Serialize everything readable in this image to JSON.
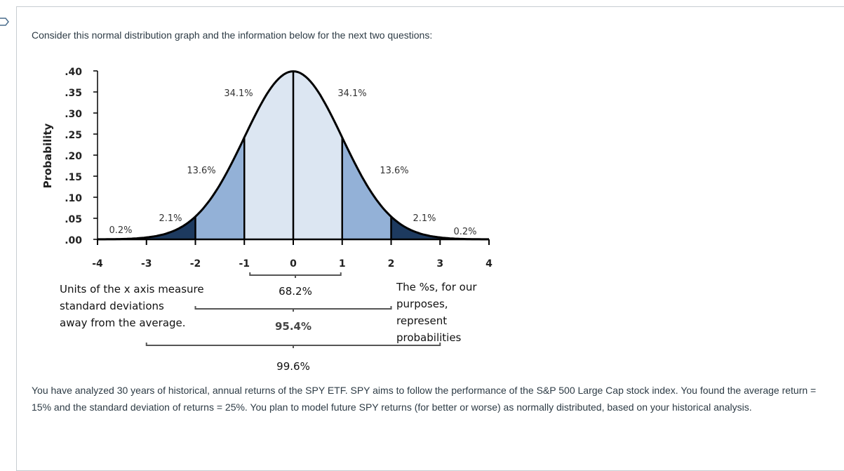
{
  "intro": "Consider this normal distribution graph and the information below for the next two questions:",
  "paragraph": "You have analyzed 30 years of historical, annual returns of the SPY ETF.  SPY aims to follow the performance of the S&P 500 Large Cap stock index. You found the average return = 15% and the standard deviation of returns = 25%. You plan to model future SPY returns (for better or worse) as normally distributed, based on your historical analysis.",
  "chart_data": {
    "type": "area",
    "ylabel": "Probability",
    "xlim": [
      -4,
      4
    ],
    "ylim": [
      0,
      0.4
    ],
    "x_ticks": [
      "-4",
      "-3",
      "-2",
      "-1",
      "0",
      "1",
      "2",
      "3",
      "4"
    ],
    "y_ticks": [
      ".40",
      ".35",
      ".30",
      ".25",
      ".20",
      ".15",
      ".10",
      ".05",
      ".00"
    ],
    "regions": [
      {
        "from": -4,
        "to": -3,
        "label": "0.2%",
        "color": "#1d3a5f"
      },
      {
        "from": -3,
        "to": -2,
        "label": "2.1%",
        "color": "#1d3a5f"
      },
      {
        "from": -2,
        "to": -1,
        "label": "13.6%",
        "color": "#93b1d7"
      },
      {
        "from": -1,
        "to": 0,
        "label": "34.1%",
        "color": "#dce6f2"
      },
      {
        "from": 0,
        "to": 1,
        "label": "34.1%",
        "color": "#dce6f2"
      },
      {
        "from": 1,
        "to": 2,
        "label": "13.6%",
        "color": "#93b1d7"
      },
      {
        "from": 2,
        "to": 3,
        "label": "2.1%",
        "color": "#1d3a5f"
      },
      {
        "from": 3,
        "to": 4,
        "label": "0.2%",
        "color": "#1d3a5f"
      }
    ],
    "brackets": [
      {
        "from": -1,
        "to": 1,
        "label": "68.2%"
      },
      {
        "from": -2,
        "to": 2,
        "label": "95.4%"
      },
      {
        "from": -3,
        "to": 3,
        "label": "99.6%"
      }
    ],
    "annotations": {
      "left": [
        "Units of the x axis measure",
        "standard deviations",
        "away from the average."
      ],
      "right": [
        "The %s, for our",
        "purposes,",
        "represent",
        "probabilities"
      ]
    }
  }
}
